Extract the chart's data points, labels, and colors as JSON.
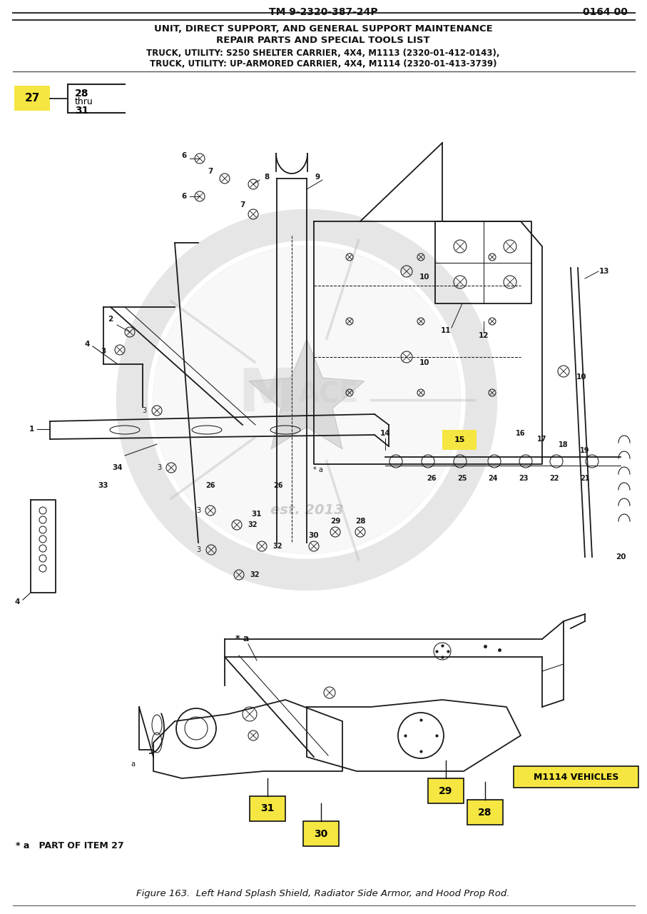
{
  "page_ref": "TM 9-2320-387-24P",
  "page_num": "0164 00",
  "title_line1": "UNIT, DIRECT SUPPORT, AND GENERAL SUPPORT MAINTENANCE",
  "title_line2": "REPAIR PARTS AND SPECIAL TOOLS LIST",
  "subtitle_line1": "TRUCK, UTILITY: S250 SHELTER CARRIER, 4X4, M1113 (2320-01-412-0143),",
  "subtitle_line2": "TRUCK, UTILITY: UP-ARMORED CARRIER, 4X4, M1114 (2320-01-413-3739)",
  "figure_caption": "Figure 163.  Left Hand Splash Shield, Radiator Side Armor, and Hood Prop Rod.",
  "m1114_label": "M1114 VEHICLES",
  "part_of_label": "* a   PART OF ITEM 27",
  "bg_color": "#ffffff",
  "text_color": "#111111",
  "yellow_color": "#F5E642",
  "dc": "#1a1a1a",
  "wm_color": "#d5d5d5",
  "wm_alpha": 0.55
}
